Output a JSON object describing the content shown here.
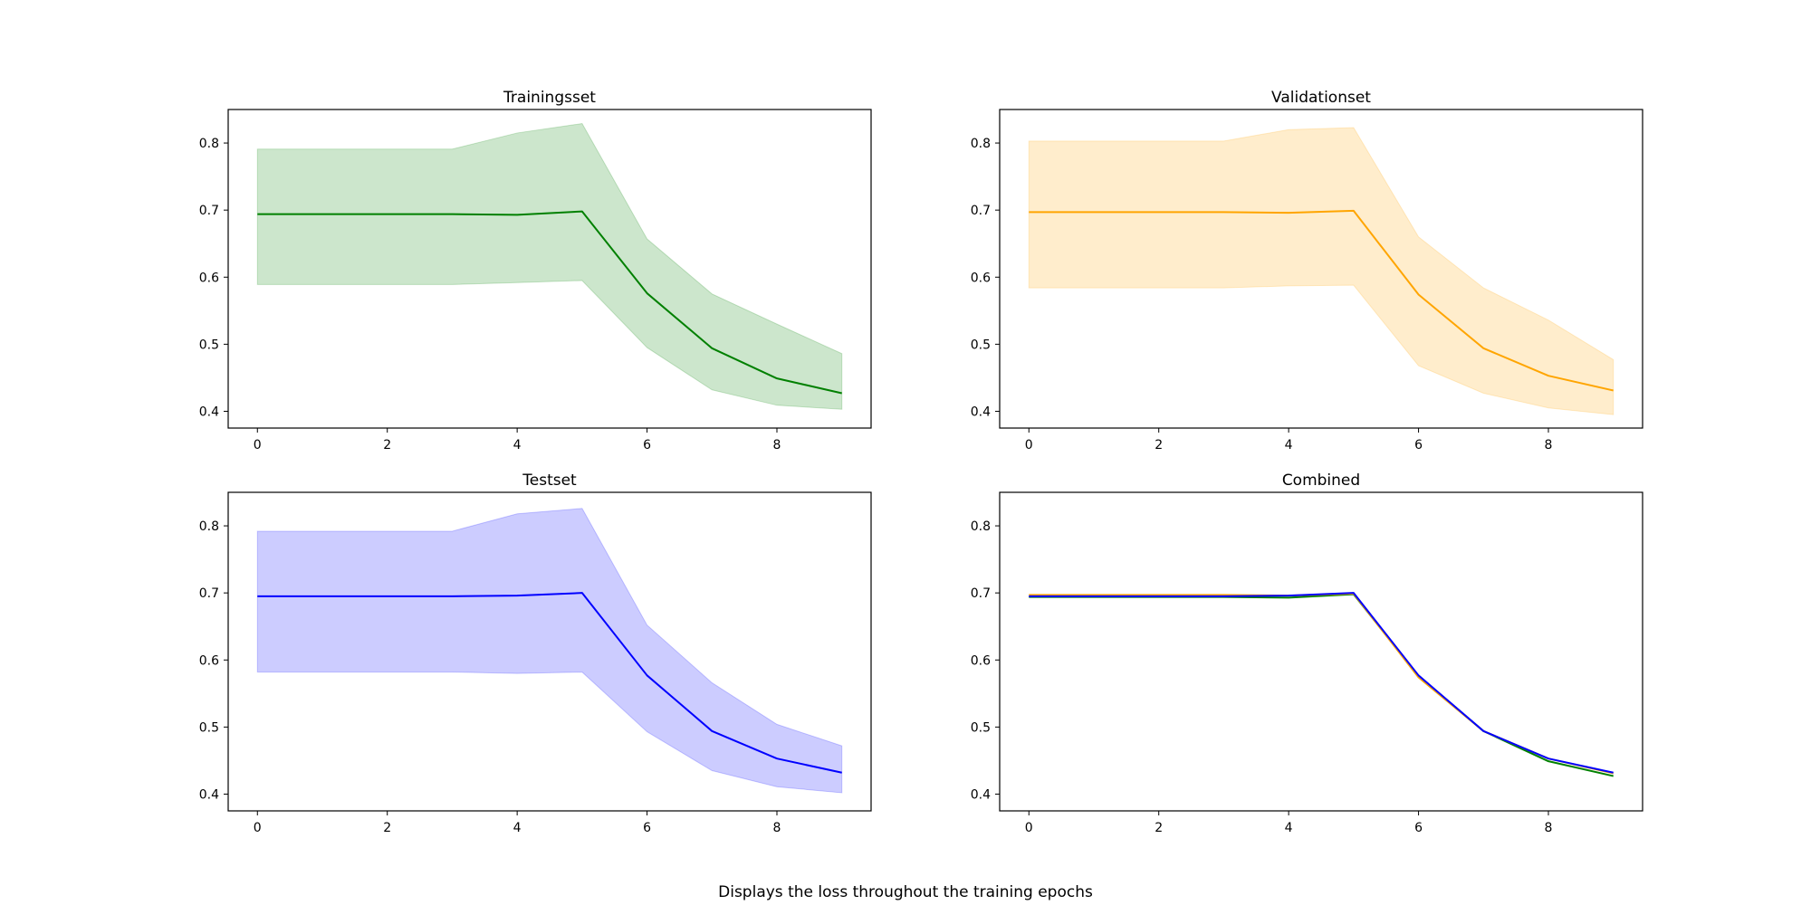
{
  "figure": {
    "caption": "Displays the loss throughout the training epochs"
  },
  "chart_data": [
    {
      "type": "line",
      "title": "Trainingsset",
      "xlabel": "",
      "ylabel": "",
      "x": [
        0,
        1,
        2,
        3,
        4,
        5,
        6,
        7,
        8,
        9
      ],
      "xticks": [
        0,
        2,
        4,
        6,
        8
      ],
      "yticks": [
        0.4,
        0.5,
        0.6,
        0.7,
        0.8
      ],
      "xlim": [
        -0.45,
        9.45
      ],
      "ylim": [
        0.375,
        0.85
      ],
      "grid": false,
      "series": [
        {
          "color": "#008000",
          "band_color": "#008000",
          "values": [
            0.694,
            0.694,
            0.694,
            0.694,
            0.693,
            0.698,
            0.576,
            0.494,
            0.449,
            0.427
          ],
          "lower": [
            0.589,
            0.589,
            0.589,
            0.589,
            0.592,
            0.595,
            0.495,
            0.432,
            0.409,
            0.403
          ],
          "upper": [
            0.791,
            0.791,
            0.791,
            0.791,
            0.815,
            0.829,
            0.657,
            0.575,
            0.53,
            0.486
          ]
        }
      ]
    },
    {
      "type": "line",
      "title": "Validationset",
      "xlabel": "",
      "ylabel": "",
      "x": [
        0,
        1,
        2,
        3,
        4,
        5,
        6,
        7,
        8,
        9
      ],
      "xticks": [
        0,
        2,
        4,
        6,
        8
      ],
      "yticks": [
        0.4,
        0.5,
        0.6,
        0.7,
        0.8
      ],
      "xlim": [
        -0.45,
        9.45
      ],
      "ylim": [
        0.375,
        0.85
      ],
      "grid": false,
      "series": [
        {
          "color": "#ffa500",
          "band_color": "#ffa500",
          "values": [
            0.697,
            0.697,
            0.697,
            0.697,
            0.696,
            0.699,
            0.574,
            0.494,
            0.453,
            0.431
          ],
          "lower": [
            0.584,
            0.584,
            0.584,
            0.584,
            0.587,
            0.588,
            0.468,
            0.427,
            0.405,
            0.395
          ],
          "upper": [
            0.803,
            0.803,
            0.803,
            0.803,
            0.82,
            0.823,
            0.66,
            0.584,
            0.536,
            0.477
          ]
        }
      ]
    },
    {
      "type": "line",
      "title": "Testset",
      "xlabel": "",
      "ylabel": "",
      "x": [
        0,
        1,
        2,
        3,
        4,
        5,
        6,
        7,
        8,
        9
      ],
      "xticks": [
        0,
        2,
        4,
        6,
        8
      ],
      "yticks": [
        0.4,
        0.5,
        0.6,
        0.7,
        0.8
      ],
      "xlim": [
        -0.45,
        9.45
      ],
      "ylim": [
        0.375,
        0.85
      ],
      "grid": false,
      "series": [
        {
          "color": "#0000ff",
          "band_color": "#0000ff",
          "values": [
            0.695,
            0.695,
            0.695,
            0.695,
            0.696,
            0.7,
            0.577,
            0.494,
            0.453,
            0.432
          ],
          "lower": [
            0.582,
            0.582,
            0.582,
            0.582,
            0.58,
            0.582,
            0.493,
            0.435,
            0.411,
            0.402
          ],
          "upper": [
            0.792,
            0.792,
            0.792,
            0.792,
            0.818,
            0.826,
            0.652,
            0.566,
            0.504,
            0.472
          ]
        }
      ]
    },
    {
      "type": "line",
      "title": "Combined",
      "xlabel": "",
      "ylabel": "",
      "x": [
        0,
        1,
        2,
        3,
        4,
        5,
        6,
        7,
        8,
        9
      ],
      "xticks": [
        0,
        2,
        4,
        6,
        8
      ],
      "yticks": [
        0.4,
        0.5,
        0.6,
        0.7,
        0.8
      ],
      "xlim": [
        -0.45,
        9.45
      ],
      "ylim": [
        0.375,
        0.85
      ],
      "grid": false,
      "series": [
        {
          "color": "#008000",
          "values": [
            0.694,
            0.694,
            0.694,
            0.694,
            0.693,
            0.698,
            0.576,
            0.494,
            0.449,
            0.427
          ]
        },
        {
          "color": "#ffa500",
          "values": [
            0.697,
            0.697,
            0.697,
            0.697,
            0.696,
            0.699,
            0.574,
            0.494,
            0.453,
            0.431
          ]
        },
        {
          "color": "#0000ff",
          "values": [
            0.695,
            0.695,
            0.695,
            0.695,
            0.696,
            0.7,
            0.577,
            0.494,
            0.453,
            0.432
          ]
        }
      ]
    }
  ]
}
